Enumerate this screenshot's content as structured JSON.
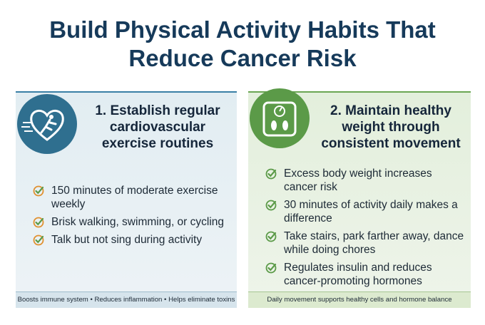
{
  "title": "Build Physical Activity Habits That Reduce Cancer Risk",
  "panels": [
    {
      "heading": "1. Establish regular cardiovascular exercise routines",
      "bullets": [
        "150 minutes of moderate exercise weekly",
        "Brisk walking, swimming, or cycling",
        "Talk but not sing during activity"
      ],
      "footer": "Boosts immune system • Reduces inflammation • Helps eliminate toxins"
    },
    {
      "heading": "2. Maintain healthy weight through consistent movement",
      "bullets": [
        "Excess body weight increases cancer risk",
        "30 minutes of activity daily makes a difference",
        "Take stairs, park farther away, dance while doing chores",
        "Regulates insulin and reduces cancer-promoting hormones"
      ],
      "footer": "Daily movement supports healthy cells and hormone balance"
    }
  ]
}
